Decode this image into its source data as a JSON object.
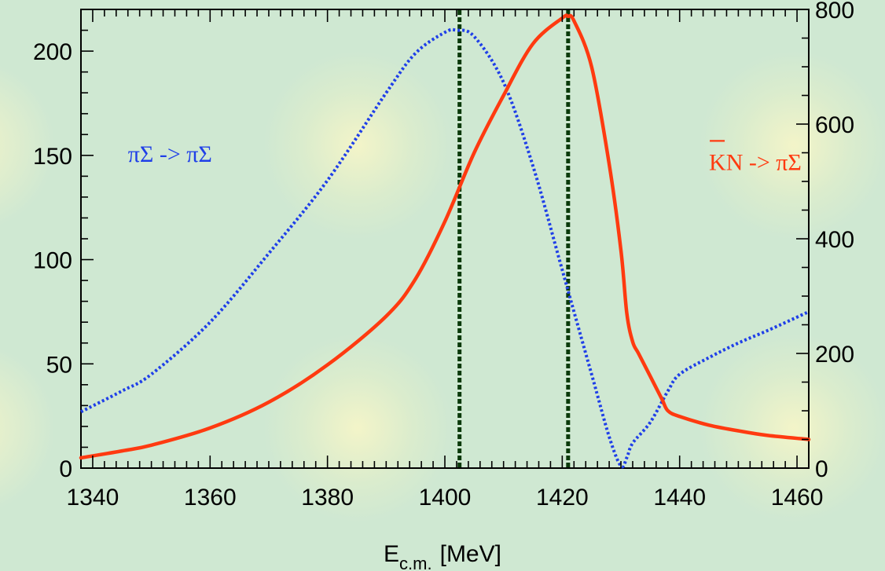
{
  "chart_data": {
    "type": "line",
    "xlabel": {
      "main": "E",
      "sub": "c.m.",
      "unit": "[MeV]"
    },
    "xlim": [
      1338,
      1462
    ],
    "ylim_left": [
      0,
      220
    ],
    "ylim_right": [
      0,
      800
    ],
    "x_ticks": [
      1340,
      1360,
      1380,
      1400,
      1420,
      1440,
      1460
    ],
    "y_left_ticks": [
      0,
      50,
      100,
      150,
      200
    ],
    "y_right_ticks": [
      0,
      200,
      400,
      600,
      800
    ],
    "grid": false,
    "series": [
      {
        "name": "πΣ -> πΣ",
        "axis": "left",
        "style": "dotted",
        "color": "#1f3fe8",
        "x": [
          1338,
          1345,
          1350,
          1360,
          1370,
          1380,
          1390,
          1395,
          1400,
          1402,
          1405,
          1410,
          1415,
          1420,
          1425,
          1428,
          1430,
          1431,
          1432,
          1435,
          1438,
          1440,
          1445,
          1450,
          1455,
          1462
        ],
        "y": [
          27,
          37,
          45,
          70,
          103,
          138,
          180,
          199,
          209,
          210,
          207,
          185,
          145,
          95,
          45,
          15,
          1,
          5,
          12,
          22,
          37,
          45,
          53,
          60,
          66,
          75
        ]
      },
      {
        "name": "KN -> πΣ",
        "axis": "right",
        "style": "solid",
        "color": "#ff3a10",
        "x": [
          1338,
          1345,
          1350,
          1360,
          1370,
          1380,
          1390,
          1395,
          1400,
          1405,
          1410,
          1415,
          1420,
          1421,
          1422,
          1425,
          1428,
          1430,
          1431,
          1432,
          1433,
          1435,
          1437,
          1438,
          1440,
          1445,
          1450,
          1455,
          1462
        ],
        "y": [
          18,
          30,
          40,
          70,
          115,
          180,
          265,
          330,
          430,
          550,
          650,
          740,
          785,
          788,
          780,
          700,
          530,
          380,
          270,
          220,
          200,
          160,
          120,
          100,
          90,
          75,
          65,
          57,
          50
        ]
      }
    ],
    "vertical_lines": [
      {
        "x": 1402.5,
        "color": "#0a3a0a"
      },
      {
        "x": 1421,
        "color": "#0a3a0a"
      }
    ],
    "annotations": [
      {
        "text": "πΣ -> πΣ",
        "color": "#1f3fe8",
        "anchor_x": 1346,
        "anchor_y_left": 147
      },
      {
        "text": "KN -> πΣ",
        "overline": "K",
        "color": "#ff3a10",
        "anchor_x": 1445,
        "anchor_y_left": 143
      }
    ]
  }
}
